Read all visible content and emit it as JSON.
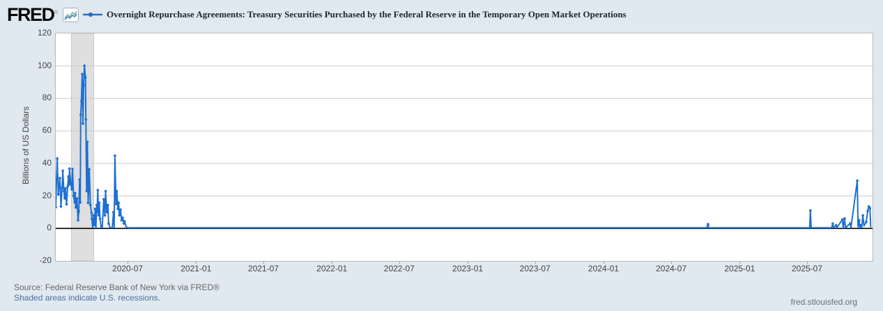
{
  "header": {
    "logo": "FRED",
    "registered_mark": "®"
  },
  "footer": {
    "source_line": "Source: Federal Reserve Bank of New York via FRED®",
    "recession_note": "Shaded areas indicate U.S. recessions.",
    "site_link": "fred.stlouisfed.org"
  },
  "colors": {
    "background": "#e1e9f0",
    "plot_background": "#ffffff",
    "gridline": "#cccccc",
    "series": "#1e6fd2",
    "zero_line": "#000000",
    "recession_band": "#dfdfdf",
    "recession_band_edge": "#c9c9c9",
    "axis_text": "#424242",
    "source_text": "#666666",
    "link_text": "#4a6f9e"
  },
  "chart_data": {
    "type": "line",
    "title": "Overnight Repurchase Agreements: Treasury Securities Purchased by the Federal Reserve in the Temporary Open Market Operations",
    "ylabel": "Billions of US Dollars",
    "xlabel": "",
    "legend_position": "top",
    "grid": "horizontal-only",
    "ylim": [
      -20,
      120
    ],
    "x_domain": [
      "2019-12-21",
      "2025-12-24"
    ],
    "y_ticks": [
      120,
      100,
      80,
      60,
      40,
      20,
      0,
      -20
    ],
    "x_ticks": [
      {
        "date": "2020-07-01",
        "label": "2020-07"
      },
      {
        "date": "2021-01-01",
        "label": "2021-01"
      },
      {
        "date": "2021-07-01",
        "label": "2021-07"
      },
      {
        "date": "2022-01-01",
        "label": "2022-01"
      },
      {
        "date": "2022-07-01",
        "label": "2022-07"
      },
      {
        "date": "2023-01-01",
        "label": "2023-01"
      },
      {
        "date": "2023-07-01",
        "label": "2023-07"
      },
      {
        "date": "2024-01-01",
        "label": "2024-01"
      },
      {
        "date": "2024-07-01",
        "label": "2024-07"
      },
      {
        "date": "2025-01-01",
        "label": "2025-01"
      },
      {
        "date": "2025-07-01",
        "label": "2025-07"
      }
    ],
    "recession_bands": [
      {
        "start": "2020-02-01",
        "end": "2020-04-01"
      }
    ],
    "zero_line": 0,
    "points": [
      [
        "2019-12-21",
        13
      ],
      [
        "2019-12-23",
        30
      ],
      [
        "2019-12-25",
        43
      ],
      [
        "2019-12-28",
        21
      ],
      [
        "2019-12-30",
        25
      ],
      [
        "2020-01-01",
        31
      ],
      [
        "2020-01-04",
        13.5
      ],
      [
        "2020-01-07",
        25
      ],
      [
        "2020-01-09",
        35.5
      ],
      [
        "2020-01-12",
        23
      ],
      [
        "2020-01-14",
        18.5
      ],
      [
        "2020-01-16",
        24.6
      ],
      [
        "2020-01-19",
        14.8
      ],
      [
        "2020-01-22",
        25.8
      ],
      [
        "2020-01-24",
        32
      ],
      [
        "2020-01-26",
        27
      ],
      [
        "2020-01-27",
        36.8
      ],
      [
        "2020-01-30",
        28
      ],
      [
        "2020-02-02",
        24
      ],
      [
        "2020-02-04",
        36.5
      ],
      [
        "2020-02-07",
        20
      ],
      [
        "2020-02-10",
        16
      ],
      [
        "2020-02-11",
        21.7
      ],
      [
        "2020-02-13",
        12.9
      ],
      [
        "2020-02-16",
        18.4
      ],
      [
        "2020-02-19",
        5
      ],
      [
        "2020-02-21",
        10.5
      ],
      [
        "2020-02-23",
        30
      ],
      [
        "2020-02-25",
        16
      ],
      [
        "2020-02-26",
        70
      ],
      [
        "2020-02-28",
        78.4
      ],
      [
        "2020-03-01",
        95
      ],
      [
        "2020-03-03",
        64.5
      ],
      [
        "2020-03-05",
        88
      ],
      [
        "2020-03-07",
        100.1
      ],
      [
        "2020-03-10",
        92.9
      ],
      [
        "2020-03-11",
        67
      ],
      [
        "2020-03-13",
        23
      ],
      [
        "2020-03-15",
        53.2
      ],
      [
        "2020-03-17",
        15.7
      ],
      [
        "2020-03-20",
        36.4
      ],
      [
        "2020-03-23",
        14.4
      ],
      [
        "2020-03-26",
        9.6
      ],
      [
        "2020-03-27",
        5.9
      ],
      [
        "2020-03-29",
        0.5
      ],
      [
        "2020-04-01",
        8
      ],
      [
        "2020-04-03",
        2
      ],
      [
        "2020-04-05",
        12
      ],
      [
        "2020-04-07",
        0.5
      ],
      [
        "2020-04-09",
        14.4
      ],
      [
        "2020-04-10",
        10
      ],
      [
        "2020-04-12",
        23.6
      ],
      [
        "2020-04-14",
        8
      ],
      [
        "2020-04-16",
        15.8
      ],
      [
        "2020-04-18",
        6
      ],
      [
        "2020-04-21",
        0.5
      ],
      [
        "2020-04-24",
        0.5
      ],
      [
        "2020-04-28",
        18
      ],
      [
        "2020-05-01",
        8
      ],
      [
        "2020-05-03",
        22.9
      ],
      [
        "2020-05-06",
        10
      ],
      [
        "2020-05-09",
        14.4
      ],
      [
        "2020-05-11",
        3
      ],
      [
        "2020-05-15",
        0.5
      ],
      [
        "2020-05-21",
        0.5
      ],
      [
        "2020-05-24",
        10
      ],
      [
        "2020-05-26",
        0.5
      ],
      [
        "2020-05-28",
        44.8
      ],
      [
        "2020-05-31",
        15
      ],
      [
        "2020-06-02",
        22.9
      ],
      [
        "2020-06-05",
        12
      ],
      [
        "2020-06-07",
        15.8
      ],
      [
        "2020-06-09",
        8
      ],
      [
        "2020-06-12",
        11.6
      ],
      [
        "2020-06-15",
        5
      ],
      [
        "2020-06-18",
        6.6
      ],
      [
        "2020-06-21",
        3
      ],
      [
        "2020-06-23",
        4.4
      ],
      [
        "2020-06-27",
        1
      ],
      [
        "2020-07-01",
        0.4
      ],
      [
        "2020-10-01",
        0.4
      ],
      [
        "2021-04-01",
        0.4
      ],
      [
        "2021-10-01",
        0.4
      ],
      [
        "2022-04-01",
        0.4
      ],
      [
        "2022-10-01",
        0.4
      ],
      [
        "2023-04-01",
        0.4
      ],
      [
        "2023-10-01",
        0.4
      ],
      [
        "2024-04-01",
        0.4
      ],
      [
        "2024-10-04",
        0.4
      ],
      [
        "2024-10-08",
        2.6
      ],
      [
        "2024-10-10",
        0.4
      ],
      [
        "2025-06-01",
        0.4
      ],
      [
        "2025-07-08",
        0.4
      ],
      [
        "2025-07-10",
        11
      ],
      [
        "2025-07-12",
        0.4
      ],
      [
        "2025-09-05",
        0.4
      ],
      [
        "2025-09-08",
        3
      ],
      [
        "2025-09-10",
        0.4
      ],
      [
        "2025-09-17",
        2
      ],
      [
        "2025-09-19",
        0.4
      ],
      [
        "2025-10-04",
        5.5
      ],
      [
        "2025-10-06",
        0.4
      ],
      [
        "2025-10-10",
        6.1
      ],
      [
        "2025-10-12",
        0.4
      ],
      [
        "2025-10-25",
        3
      ],
      [
        "2025-10-27",
        0.4
      ],
      [
        "2025-11-13",
        29.4
      ],
      [
        "2025-11-15",
        1
      ],
      [
        "2025-11-18",
        5
      ],
      [
        "2025-11-20",
        0.5
      ],
      [
        "2025-11-22",
        2
      ],
      [
        "2025-11-25",
        0.5
      ],
      [
        "2025-11-28",
        8
      ],
      [
        "2025-12-01",
        1.5
      ],
      [
        "2025-12-07",
        4
      ],
      [
        "2025-12-11",
        10.8
      ],
      [
        "2025-12-14",
        13.5
      ],
      [
        "2025-12-17",
        12.5
      ],
      [
        "2025-12-19",
        1
      ]
    ]
  }
}
